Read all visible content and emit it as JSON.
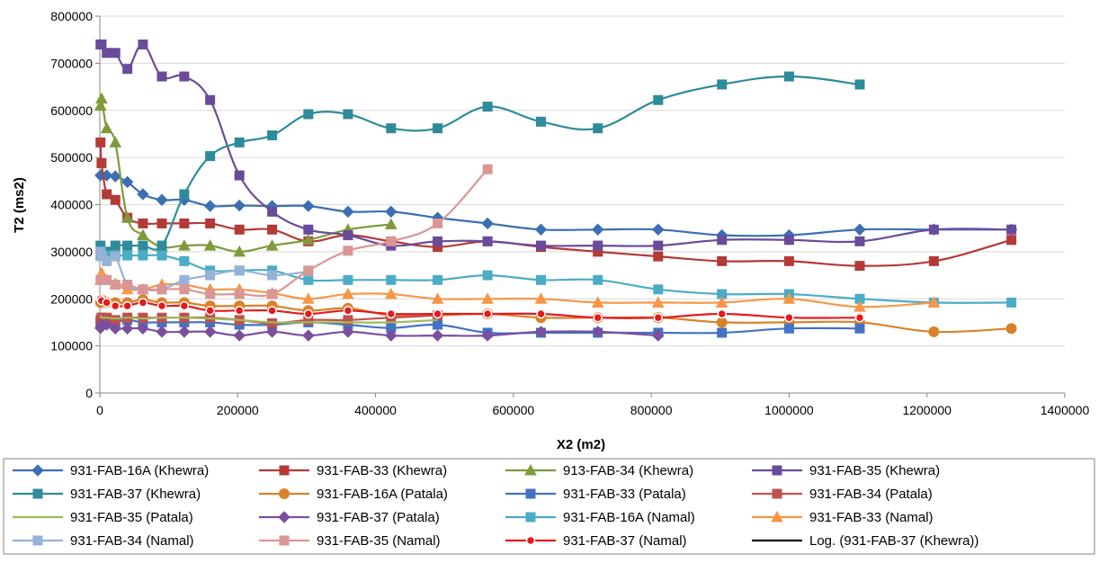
{
  "chart_data": {
    "type": "line",
    "xlabel": "X2 (m2)",
    "ylabel": "T2 (ms2)",
    "xlim": [
      0,
      1400000
    ],
    "ylim": [
      0,
      800000
    ],
    "x_ticks": [
      "0",
      "200000",
      "400000",
      "600000",
      "800000",
      "1000000",
      "1200000",
      "1400000"
    ],
    "y_ticks": [
      "0",
      "100000",
      "200000",
      "300000",
      "400000",
      "500000",
      "600000",
      "700000",
      "800000"
    ],
    "grid": "horizontal",
    "legend_position": "bottom",
    "series": [
      {
        "name": "931-FAB-16A (Khewra)",
        "color": "#3c6eb4",
        "marker": "diamond",
        "x": [
          1000,
          10000,
          22500,
          40000,
          62500,
          90000,
          122500,
          160000,
          202500,
          250000,
          302500,
          360000,
          422500,
          490000,
          562500,
          640000,
          722500,
          810000,
          902500,
          1000000,
          1102500,
          1210000,
          1322500
        ],
        "y": [
          462000,
          462000,
          460000,
          448000,
          422000,
          410000,
          410000,
          397000,
          398000,
          397000,
          397000,
          385000,
          385000,
          372000,
          360000,
          347000,
          347000,
          347000,
          335000,
          335000,
          347000,
          347000,
          347000
        ]
      },
      {
        "name": "931-FAB-33 (Khewra)",
        "color": "#b23a37",
        "marker": "square",
        "x": [
          1000,
          2500,
          10000,
          22500,
          40000,
          62500,
          90000,
          122500,
          160000,
          202500,
          250000,
          302500,
          360000,
          422500,
          490000,
          562500,
          640000,
          722500,
          810000,
          902500,
          1000000,
          1102500,
          1210000,
          1322500
        ],
        "y": [
          532000,
          488000,
          422000,
          410000,
          372000,
          360000,
          360000,
          360000,
          360000,
          347000,
          347000,
          322000,
          335000,
          322000,
          310000,
          322000,
          310000,
          300000,
          290000,
          280000,
          280000,
          270000,
          280000,
          325000
        ]
      },
      {
        "name": "913-FAB-34 (Khewra)",
        "color": "#7f9a3a",
        "marker": "triangle",
        "x": [
          1000,
          2500,
          10000,
          22500,
          40000,
          62500,
          90000,
          122500,
          160000,
          202500,
          250000,
          302500,
          360000,
          422500
        ],
        "y": [
          610000,
          625000,
          562000,
          532000,
          372000,
          335000,
          310000,
          313000,
          313000,
          300000,
          313000,
          325000,
          347000,
          358000
        ]
      },
      {
        "name": "931-FAB-35 (Khewra)",
        "color": "#6a4b9a",
        "marker": "square",
        "x": [
          1000,
          2500,
          10000,
          22500,
          40000,
          62500,
          90000,
          122500,
          160000,
          202500,
          250000,
          302500,
          360000,
          422500,
          490000,
          562500,
          640000,
          722500,
          810000,
          902500,
          1000000,
          1102500,
          1210000,
          1322500
        ],
        "y": [
          740000,
          740000,
          722000,
          722000,
          688000,
          740000,
          672000,
          672000,
          622000,
          462000,
          385000,
          347000,
          335000,
          313000,
          322000,
          322000,
          313000,
          313000,
          313000,
          325000,
          325000,
          322000,
          347000,
          347000
        ]
      },
      {
        "name": "931-FAB-37 (Khewra)",
        "color": "#2e8b99",
        "marker": "square",
        "x": [
          1000,
          2500,
          10000,
          22500,
          40000,
          62500,
          90000,
          122500,
          160000,
          202500,
          250000,
          302500,
          360000,
          422500,
          490000,
          562500,
          640000,
          722500,
          810000,
          902500,
          1000000,
          1102500
        ],
        "y": [
          313000,
          300000,
          300000,
          313000,
          313000,
          313000,
          313000,
          422000,
          503000,
          532000,
          547000,
          592000,
          592000,
          562000,
          562000,
          608000,
          576000,
          562000,
          622000,
          655000,
          672000,
          655000
        ]
      },
      {
        "name": "931-FAB-16A (Patala)",
        "color": "#d9822b",
        "marker": "circle",
        "x": [
          1000,
          2500,
          10000,
          22500,
          40000,
          62500,
          90000,
          122500,
          160000,
          202500,
          250000,
          302500,
          360000,
          422500,
          490000,
          562500,
          640000,
          722500,
          810000,
          902500,
          1000000,
          1102500,
          1210000,
          1322500
        ],
        "y": [
          192000,
          198000,
          192000,
          192000,
          192000,
          198000,
          192000,
          192000,
          185000,
          185000,
          185000,
          175000,
          180000,
          165000,
          165000,
          168000,
          160000,
          160000,
          160000,
          150000,
          150000,
          150000,
          130000,
          137000
        ]
      },
      {
        "name": "931-FAB-33 (Patala)",
        "color": "#4472c4",
        "marker": "square",
        "x": [
          1000,
          2500,
          10000,
          22500,
          40000,
          62500,
          90000,
          122500,
          160000,
          202500,
          250000,
          302500,
          360000,
          422500,
          490000,
          562500,
          640000,
          722500,
          810000,
          902500,
          1000000,
          1102500
        ],
        "y": [
          150000,
          160000,
          152000,
          150000,
          155000,
          150000,
          150000,
          150000,
          150000,
          145000,
          145000,
          150000,
          145000,
          138000,
          145000,
          128000,
          128000,
          128000,
          128000,
          128000,
          137000,
          137000
        ]
      },
      {
        "name": "931-FAB-34 (Patala)",
        "color": "#c0504d",
        "marker": "square",
        "x": [
          1000,
          2500,
          10000,
          22500,
          40000,
          62500,
          90000,
          122500,
          160000,
          202500,
          250000,
          302500,
          360000,
          422500,
          490000
        ],
        "y": [
          155000,
          160000,
          160000,
          155000,
          160000,
          160000,
          160000,
          160000,
          160000,
          155000,
          148000,
          155000,
          155000,
          160000,
          165000
        ]
      },
      {
        "name": "931-FAB-35 (Patala)",
        "color": "#9bbb59",
        "marker": "none",
        "x": [
          1000,
          2500,
          10000,
          22500,
          40000,
          62500,
          90000,
          122500,
          160000,
          202500,
          250000,
          302500,
          360000,
          422500,
          490000
        ],
        "y": [
          165000,
          160000,
          160000,
          158000,
          160000,
          158000,
          160000,
          160000,
          158000,
          155000,
          150000,
          150000,
          150000,
          150000,
          155000
        ]
      },
      {
        "name": "931-FAB-37 (Patala)",
        "color": "#7a4f9e",
        "marker": "diamond",
        "x": [
          1000,
          2500,
          10000,
          22500,
          40000,
          62500,
          90000,
          122500,
          160000,
          202500,
          250000,
          302500,
          360000,
          422500,
          490000,
          562500,
          640000,
          722500,
          810000
        ],
        "y": [
          138000,
          145000,
          145000,
          137000,
          137000,
          137000,
          130000,
          130000,
          130000,
          122000,
          130000,
          122000,
          130000,
          122000,
          122000,
          122000,
          130000,
          130000,
          122000
        ]
      },
      {
        "name": "931-FAB-16A (Namal)",
        "color": "#4bacc6",
        "marker": "square",
        "x": [
          1000,
          2500,
          10000,
          22500,
          40000,
          62500,
          90000,
          122500,
          160000,
          202500,
          250000,
          302500,
          360000,
          422500,
          490000,
          562500,
          640000,
          722500,
          810000,
          902500,
          1000000,
          1102500,
          1210000,
          1322500
        ],
        "y": [
          292000,
          292000,
          292000,
          292000,
          292000,
          292000,
          292000,
          280000,
          260000,
          260000,
          260000,
          240000,
          240000,
          240000,
          240000,
          250000,
          240000,
          240000,
          220000,
          210000,
          210000,
          200000,
          192000,
          192000
        ]
      },
      {
        "name": "931-FAB-33 (Namal)",
        "color": "#f79646",
        "marker": "triangle",
        "x": [
          1000,
          2500,
          10000,
          22500,
          40000,
          62500,
          90000,
          122500,
          160000,
          202500,
          250000,
          302500,
          360000,
          422500,
          490000,
          562500,
          640000,
          722500,
          810000,
          902500,
          1000000,
          1102500,
          1210000
        ],
        "y": [
          240000,
          255000,
          240000,
          232000,
          220000,
          220000,
          230000,
          230000,
          220000,
          220000,
          212000,
          200000,
          210000,
          210000,
          200000,
          200000,
          200000,
          192000,
          192000,
          192000,
          200000,
          183000,
          192000
        ]
      },
      {
        "name": "931-FAB-34 (Namal)",
        "color": "#95b3d7",
        "marker": "square",
        "x": [
          1000,
          2500,
          10000,
          22500,
          40000,
          62500,
          90000,
          122500,
          160000,
          202500,
          250000,
          302500
        ],
        "y": [
          300000,
          290000,
          280000,
          290000,
          230000,
          220000,
          220000,
          240000,
          250000,
          260000,
          250000,
          258000
        ]
      },
      {
        "name": "931-FAB-35 (Namal)",
        "color": "#d99694",
        "marker": "square",
        "x": [
          1000,
          2500,
          10000,
          22500,
          40000,
          62500,
          90000,
          122500,
          160000,
          202500,
          250000,
          302500,
          360000,
          422500,
          490000,
          562500
        ],
        "y": [
          240000,
          240000,
          240000,
          230000,
          230000,
          220000,
          220000,
          220000,
          210000,
          210000,
          210000,
          260000,
          302000,
          322000,
          360000,
          475000
        ]
      },
      {
        "name": "931-FAB-37 (Namal)",
        "color": "#e41a1c",
        "marker": "dot",
        "x": [
          1000,
          2500,
          10000,
          22500,
          40000,
          62500,
          90000,
          122500,
          160000,
          202500,
          250000,
          302500,
          360000,
          422500,
          490000,
          562500,
          640000,
          722500,
          810000,
          902500,
          1000000,
          1102500
        ],
        "y": [
          200000,
          196000,
          192000,
          185000,
          185000,
          192000,
          185000,
          185000,
          175000,
          175000,
          175000,
          168000,
          175000,
          168000,
          168000,
          168000,
          168000,
          160000,
          160000,
          168000,
          160000,
          160000
        ]
      },
      {
        "name": "Log. (931-FAB-37 (Khewra))",
        "color": "#000000",
        "marker": "none",
        "x": [],
        "y": []
      }
    ]
  }
}
